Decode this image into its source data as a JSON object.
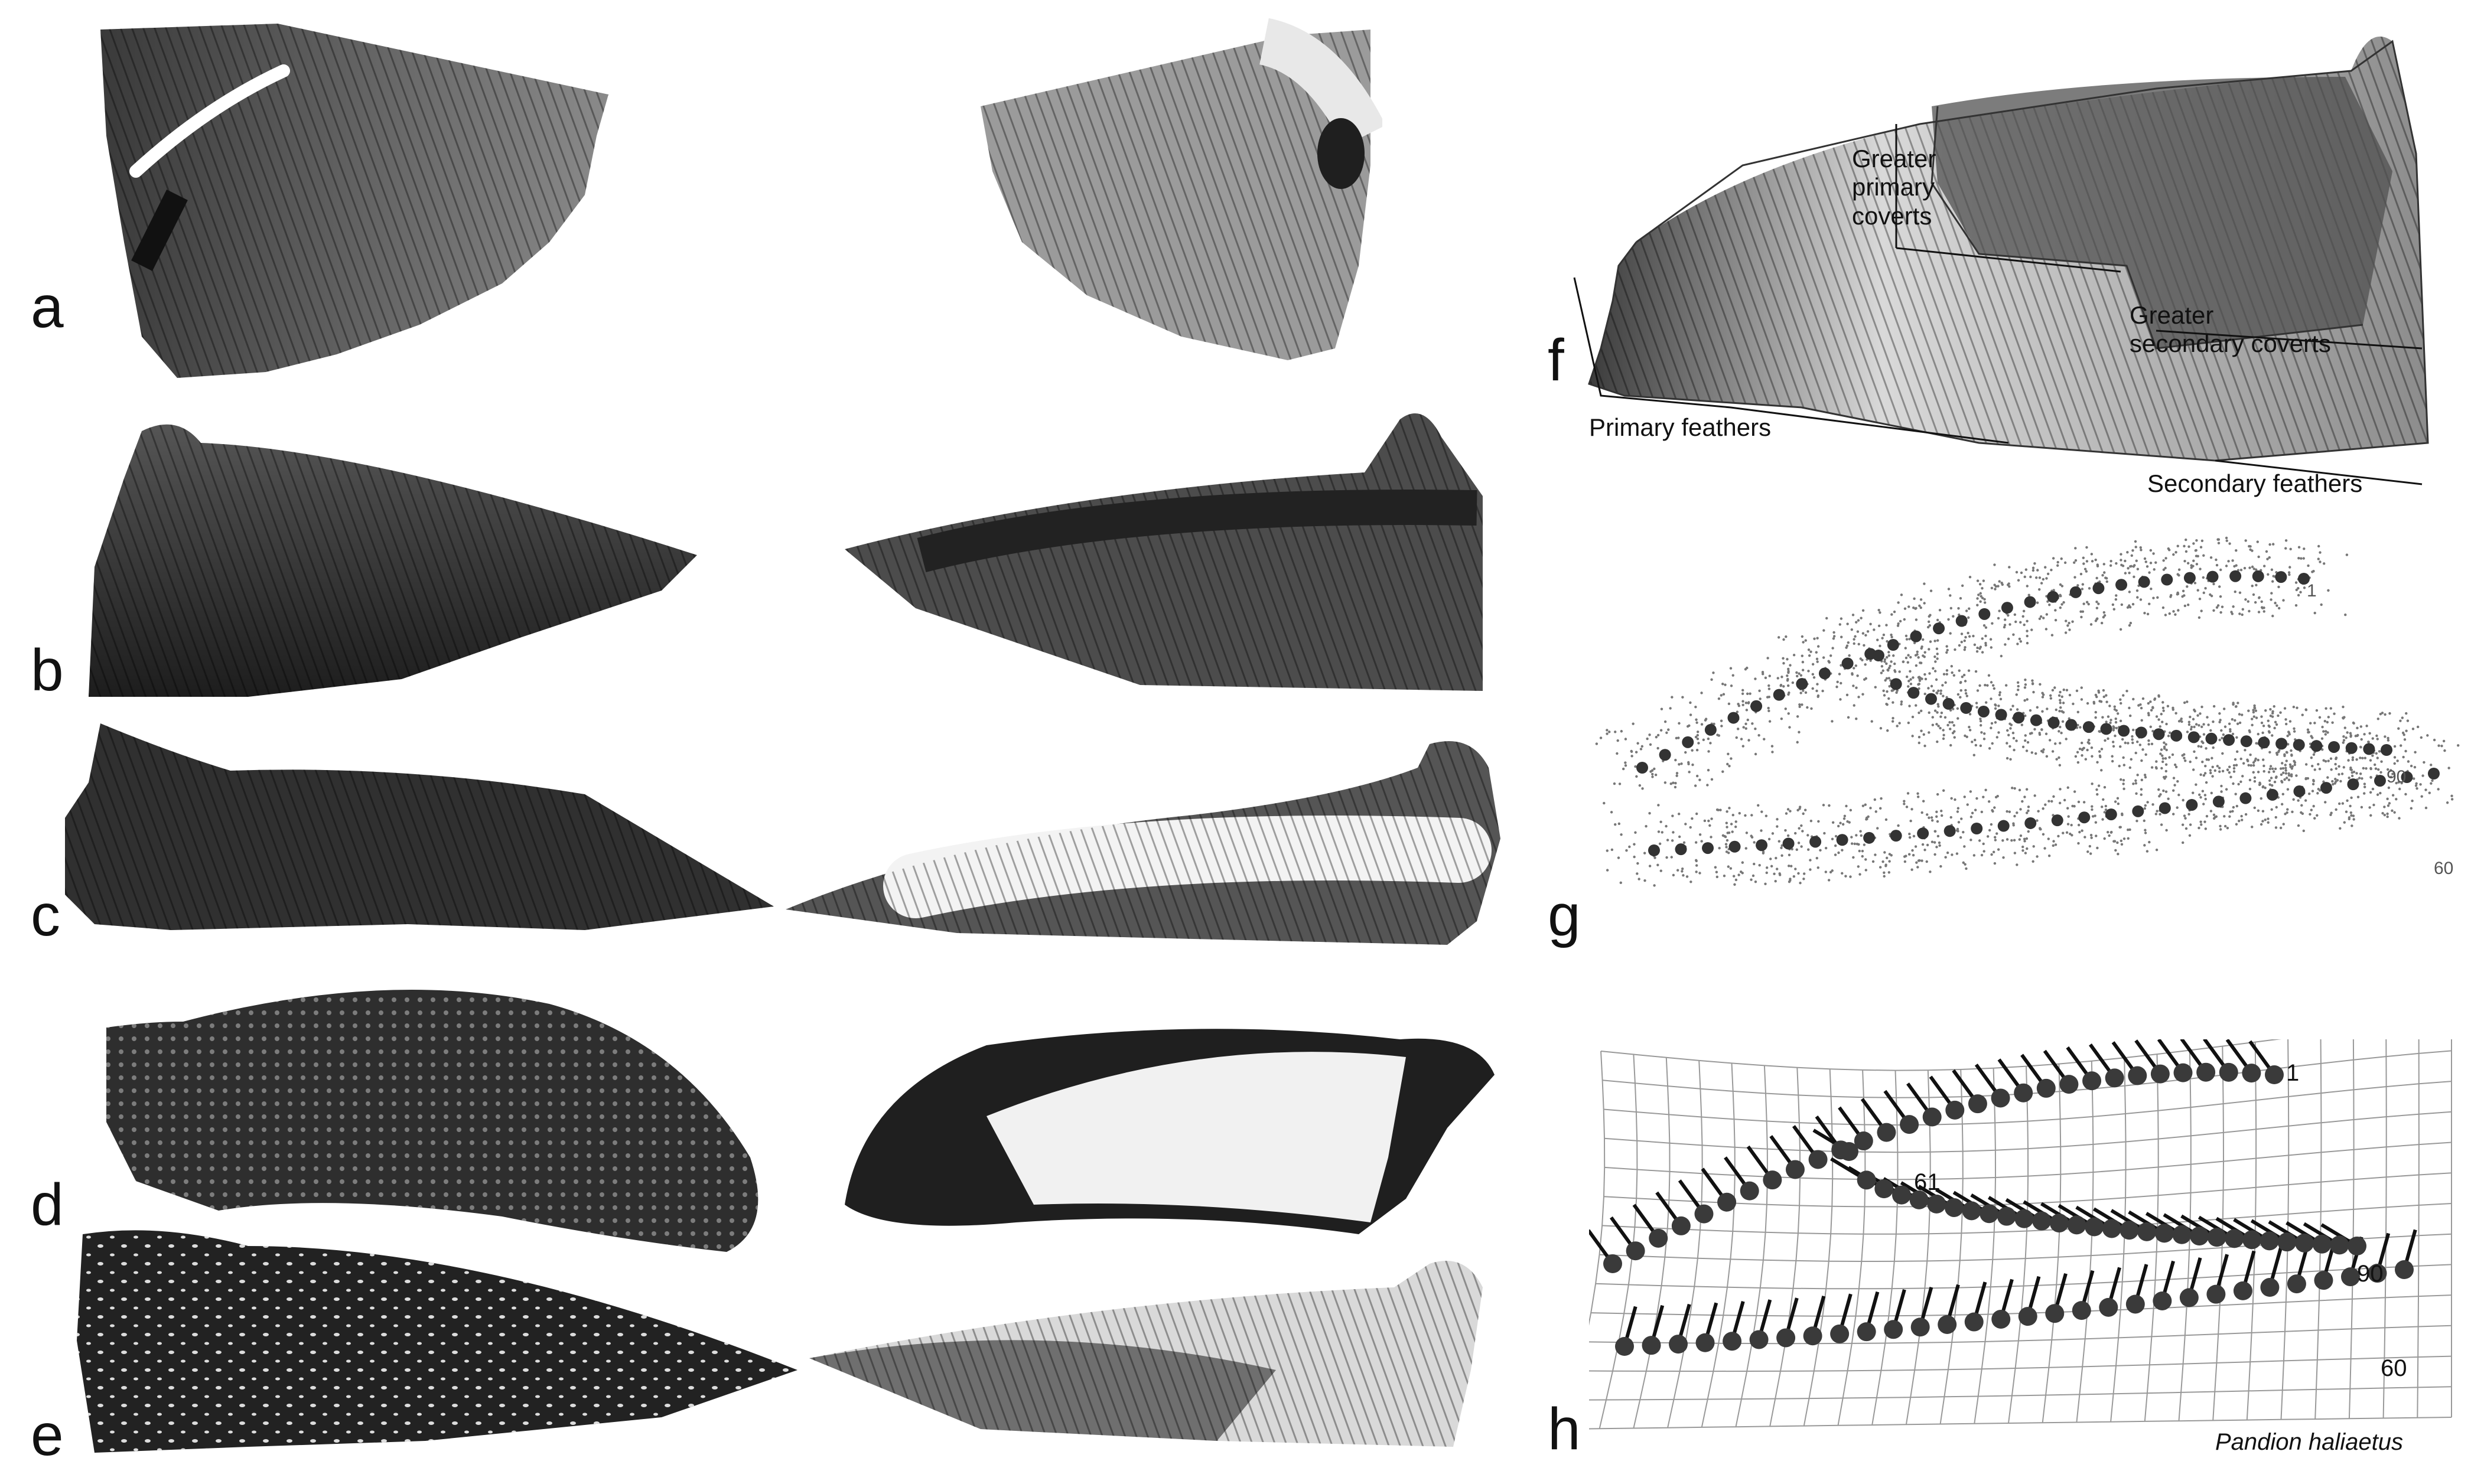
{
  "panels": {
    "a": "a",
    "b": "b",
    "c": "c",
    "d": "d",
    "e": "e",
    "f": "f",
    "g": "g",
    "h": "h"
  },
  "panel_f": {
    "greater_primary_coverts": "Greater\nprimary\ncoverts",
    "greater_secondary_coverts": "Greater\nsecondary coverts",
    "primary_feathers": "Primary feathers",
    "secondary_feathers": "Secondary feathers"
  },
  "panel_g": {
    "landmark_labels": [
      "1",
      "60",
      "90"
    ]
  },
  "panel_h": {
    "landmark_labels": [
      "1",
      "61",
      "90",
      "60"
    ],
    "species": "Pandion haliaetus"
  },
  "colors": {
    "ink": "#111111",
    "wing_dark": "#2b2b2b",
    "wing_mid": "#6e6e6e",
    "wing_light": "#e6e6e6"
  }
}
